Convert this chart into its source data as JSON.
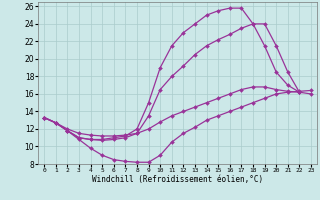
{
  "xlabel": "Windchill (Refroidissement éolien,°C)",
  "background_color": "#cce8e8",
  "line_color": "#993399",
  "grid_color": "#aacccc",
  "xlim": [
    -0.5,
    23.5
  ],
  "ylim": [
    8,
    26.5
  ],
  "xticks": [
    0,
    1,
    2,
    3,
    4,
    5,
    6,
    7,
    8,
    9,
    10,
    11,
    12,
    13,
    14,
    15,
    16,
    17,
    18,
    19,
    20,
    21,
    22,
    23
  ],
  "yticks": [
    8,
    10,
    12,
    14,
    16,
    18,
    20,
    22,
    24,
    26
  ],
  "lines": [
    {
      "x": [
        0,
        1,
        2,
        3,
        4,
        5,
        6,
        7,
        8,
        9,
        10,
        11,
        12,
        13,
        14,
        15,
        16,
        17,
        18,
        19,
        20,
        21,
        22,
        23
      ],
      "y": [
        13.3,
        12.7,
        11.8,
        10.8,
        9.8,
        9.0,
        8.5,
        8.3,
        8.2,
        8.2,
        9.0,
        10.5,
        11.5,
        12.2,
        13.0,
        13.5,
        14.0,
        14.5,
        15.0,
        15.5,
        16.0,
        16.2,
        16.3,
        16.4
      ]
    },
    {
      "x": [
        0,
        1,
        2,
        3,
        4,
        5,
        6,
        7,
        8,
        9,
        10,
        11,
        12,
        13,
        14,
        15,
        16,
        17,
        18,
        19,
        20,
        21,
        22,
        23
      ],
      "y": [
        13.3,
        12.7,
        12.0,
        11.5,
        11.3,
        11.2,
        11.2,
        11.3,
        11.5,
        12.0,
        12.8,
        13.5,
        14.0,
        14.5,
        15.0,
        15.5,
        16.0,
        16.5,
        16.8,
        16.8,
        16.5,
        16.3,
        16.2,
        16.0
      ]
    },
    {
      "x": [
        0,
        1,
        2,
        3,
        4,
        5,
        6,
        7,
        8,
        9,
        10,
        11,
        12,
        13,
        14,
        15,
        16,
        17,
        18,
        19,
        20,
        21,
        22
      ],
      "y": [
        13.3,
        12.7,
        11.8,
        11.0,
        10.8,
        10.7,
        10.8,
        11.0,
        11.5,
        13.5,
        16.5,
        18.0,
        19.2,
        20.5,
        21.5,
        22.2,
        22.8,
        23.5,
        24.0,
        24.0,
        21.5,
        18.5,
        16.2
      ]
    },
    {
      "x": [
        0,
        1,
        2,
        3,
        4,
        5,
        6,
        7,
        8,
        9,
        10,
        11,
        12,
        13,
        14,
        15,
        16,
        17,
        18,
        19,
        20,
        21,
        22
      ],
      "y": [
        13.3,
        12.7,
        11.8,
        11.0,
        10.8,
        10.8,
        11.0,
        11.2,
        12.0,
        15.0,
        19.0,
        21.5,
        23.0,
        24.0,
        25.0,
        25.5,
        25.8,
        25.8,
        24.0,
        21.5,
        18.5,
        17.0,
        16.2
      ]
    }
  ]
}
